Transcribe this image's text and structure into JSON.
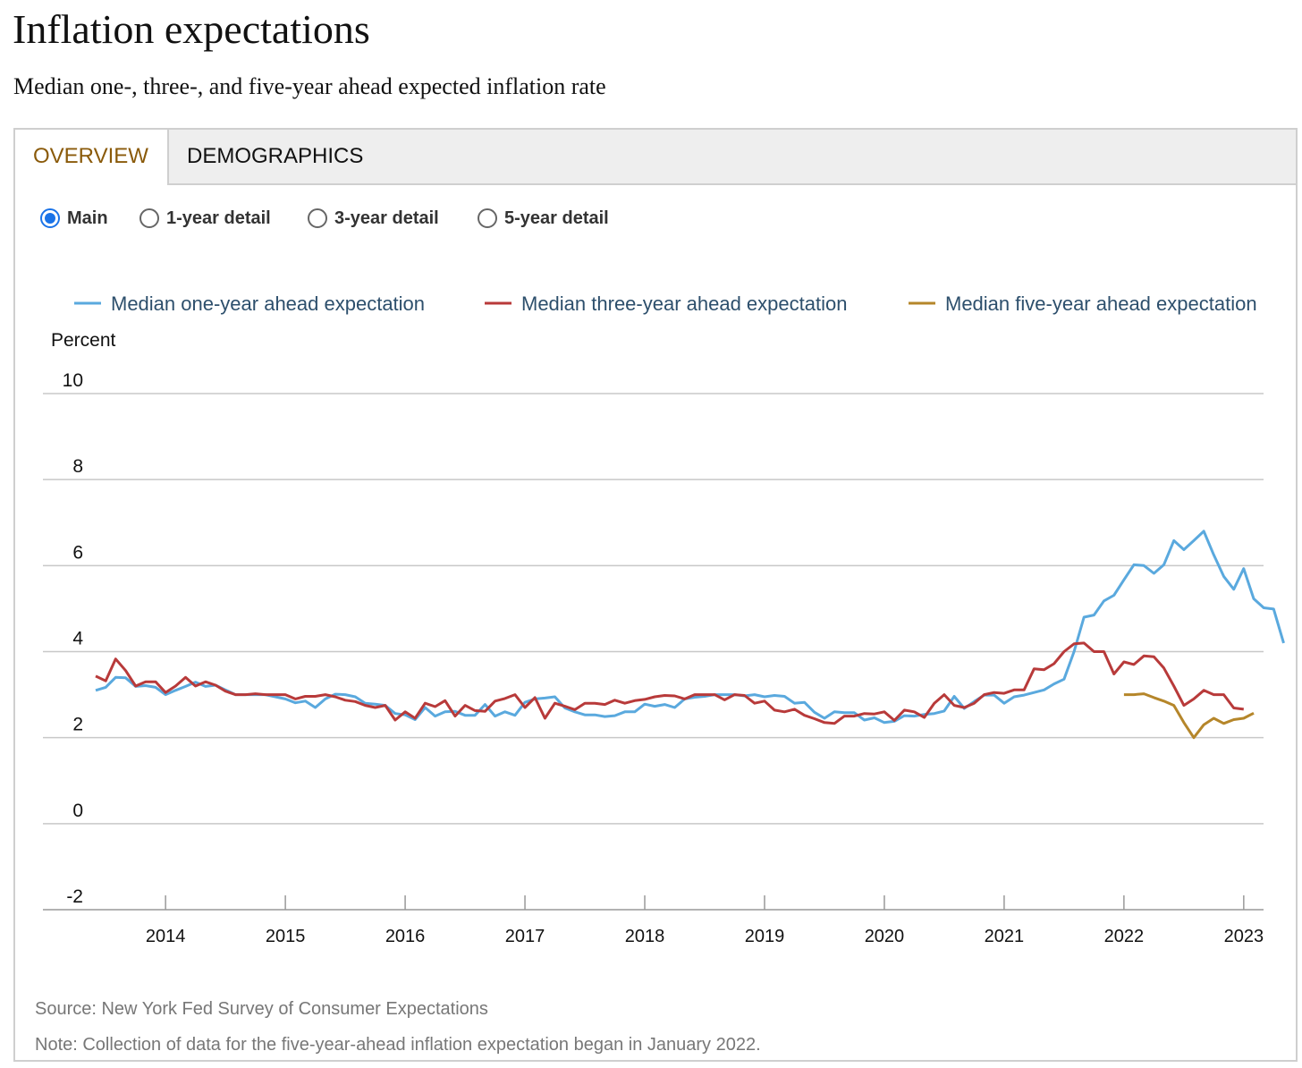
{
  "title": "Inflation expectations",
  "subtitle": "Median one-, three-, and five-year ahead expected inflation rate",
  "tabs": [
    {
      "label": "OVERVIEW",
      "active": true
    },
    {
      "label": "DEMOGRAPHICS",
      "active": false
    }
  ],
  "views": [
    {
      "label": "Main",
      "selected": true
    },
    {
      "label": "1-year detail",
      "selected": false
    },
    {
      "label": "3-year detail",
      "selected": false
    },
    {
      "label": "5-year detail",
      "selected": false
    }
  ],
  "colors": {
    "accent_tab": "#8a5a0a",
    "radio_selected": "#1a73e8",
    "one_year": "#5aa9de",
    "three_year": "#b83a3a",
    "five_year": "#b5862a"
  },
  "chart_data": {
    "type": "line",
    "title": "",
    "ylabel": "Percent",
    "xlabel": "",
    "ylim": [
      -2,
      10
    ],
    "yticks": [
      10,
      8,
      6,
      4,
      2,
      0,
      -2
    ],
    "xticks": [
      "2014",
      "2015",
      "2016",
      "2017",
      "2018",
      "2019",
      "2020",
      "2021",
      "2022",
      "2023"
    ],
    "xlim": [
      "2013-06",
      "2023-02"
    ],
    "grid": true,
    "legend_position": "top",
    "series": [
      {
        "name": "Median one-year ahead expectation",
        "color": "#5aa9de",
        "start": "2013-06",
        "values": [
          3.1,
          3.17,
          3.4,
          3.39,
          3.19,
          3.21,
          3.17,
          3.0,
          3.1,
          3.19,
          3.29,
          3.19,
          3.22,
          3.11,
          3.0,
          3.0,
          3.0,
          3.0,
          2.95,
          2.9,
          2.81,
          2.85,
          2.7,
          2.9,
          3.01,
          3.0,
          2.95,
          2.8,
          2.78,
          2.75,
          2.56,
          2.53,
          2.42,
          2.7,
          2.5,
          2.6,
          2.61,
          2.52,
          2.52,
          2.77,
          2.5,
          2.6,
          2.52,
          2.82,
          2.9,
          2.92,
          2.95,
          2.69,
          2.6,
          2.53,
          2.53,
          2.49,
          2.51,
          2.6,
          2.6,
          2.78,
          2.73,
          2.77,
          2.7,
          2.9,
          2.94,
          2.96,
          3.0,
          3.0,
          3.0,
          2.97,
          3.0,
          2.95,
          2.98,
          2.96,
          2.8,
          2.82,
          2.59,
          2.45,
          2.6,
          2.58,
          2.58,
          2.41,
          2.46,
          2.35,
          2.38,
          2.51,
          2.5,
          2.54,
          2.56,
          2.62,
          2.96,
          2.68,
          2.84,
          2.99,
          2.99,
          2.8,
          2.95,
          2.99,
          3.05,
          3.11,
          3.25,
          3.36,
          4.0,
          4.8,
          4.85,
          5.18,
          5.31,
          5.67,
          6.02,
          6.0,
          5.82,
          6.02,
          6.58,
          6.37,
          6.58,
          6.8,
          6.25,
          5.75,
          5.45,
          5.93,
          5.23,
          5.02,
          4.99,
          4.2
        ]
      },
      {
        "name": "Median three-year ahead expectation",
        "color": "#b83a3a",
        "start": "2013-06",
        "values": [
          3.43,
          3.32,
          3.83,
          3.56,
          3.2,
          3.3,
          3.3,
          3.05,
          3.2,
          3.4,
          3.2,
          3.3,
          3.22,
          3.08,
          3.0,
          3.0,
          3.02,
          3.0,
          3.0,
          3.0,
          2.9,
          2.96,
          2.96,
          3.0,
          2.95,
          2.87,
          2.84,
          2.75,
          2.7,
          2.75,
          2.41,
          2.6,
          2.45,
          2.8,
          2.72,
          2.86,
          2.5,
          2.75,
          2.63,
          2.61,
          2.85,
          2.91,
          3.0,
          2.7,
          2.93,
          2.45,
          2.8,
          2.73,
          2.65,
          2.8,
          2.8,
          2.77,
          2.87,
          2.8,
          2.86,
          2.89,
          2.95,
          2.98,
          2.97,
          2.9,
          3.0,
          3.0,
          3.0,
          2.88,
          3.0,
          2.98,
          2.8,
          2.85,
          2.64,
          2.6,
          2.66,
          2.52,
          2.44,
          2.35,
          2.33,
          2.5,
          2.5,
          2.56,
          2.55,
          2.6,
          2.4,
          2.64,
          2.6,
          2.47,
          2.8,
          3.0,
          2.75,
          2.7,
          2.8,
          3.0,
          3.05,
          3.03,
          3.11,
          3.11,
          3.6,
          3.58,
          3.72,
          4.0,
          4.18,
          4.2,
          4.0,
          4.0,
          3.48,
          3.76,
          3.7,
          3.9,
          3.88,
          3.62,
          3.2,
          2.75,
          2.9,
          3.1,
          3.0,
          3.0,
          2.69,
          2.66
        ]
      },
      {
        "name": "Median five-year ahead expectation",
        "color": "#b5862a",
        "start": "2022-01",
        "values": [
          3.0,
          3.0,
          3.02,
          2.93,
          2.85,
          2.75,
          2.35,
          2.0,
          2.3,
          2.45,
          2.33,
          2.42,
          2.45,
          2.57
        ]
      }
    ]
  },
  "footer": {
    "source": "Source: New York Fed Survey of Consumer Expectations",
    "note": "Note: Collection of data for the five-year-ahead inflation expectation began in January 2022."
  }
}
